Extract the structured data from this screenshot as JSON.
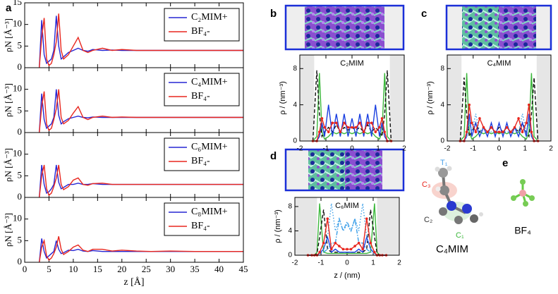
{
  "panel_labels": [
    "a",
    "b",
    "c",
    "d",
    "e"
  ],
  "panel_e": {
    "atom_labels": [
      "T₁",
      "C₃",
      "C₂",
      "C₁"
    ],
    "names": [
      "C₄MIM",
      "BF₄"
    ]
  },
  "chart_data": [
    {
      "type": "line",
      "ylabel": "ρN [Å⁻³]",
      "xlim": [
        0,
        45
      ],
      "xticks": [
        0,
        5,
        10,
        15,
        20,
        25,
        30,
        35,
        40,
        45
      ],
      "xtick_labels": false,
      "ylim": [
        0,
        15
      ],
      "yticks": [
        0,
        5,
        10,
        15
      ],
      "x": [
        3,
        3.5,
        4,
        4.5,
        5,
        5.5,
        6,
        6.5,
        7,
        7.5,
        8,
        9,
        10,
        11,
        12,
        13,
        14,
        16,
        18,
        20,
        23,
        26,
        30,
        35,
        40,
        45
      ],
      "series": [
        {
          "name": "C₂MIM+",
          "color": "#2626d4",
          "values": [
            0,
            11,
            3,
            1,
            1.5,
            2,
            4,
            12,
            5,
            2,
            2.5,
            3.5,
            4,
            4.5,
            4,
            3.8,
            4.2,
            4,
            4.1,
            4,
            4,
            4,
            4,
            4,
            4,
            4
          ]
        },
        {
          "name": "BF₄-",
          "color": "#e8261e",
          "values": [
            0,
            7,
            11.5,
            2,
            0.5,
            1,
            3,
            6,
            12.5,
            4,
            2,
            3,
            5,
            7,
            4,
            3.5,
            4,
            4.5,
            4,
            4.2,
            4,
            4,
            4,
            4,
            4,
            4
          ]
        }
      ]
    },
    {
      "type": "line",
      "ylabel": "ρN [Å⁻³]",
      "xlim": [
        0,
        45
      ],
      "xticks": [
        0,
        5,
        10,
        15,
        20,
        25,
        30,
        35,
        40,
        45
      ],
      "xtick_labels": false,
      "ylim": [
        0,
        15
      ],
      "yticks": [
        0,
        5,
        10
      ],
      "x": [
        3,
        3.5,
        4,
        4.5,
        5,
        5.5,
        6,
        6.5,
        7,
        7.5,
        8,
        9,
        10,
        11,
        12,
        13,
        14,
        16,
        18,
        20,
        23,
        26,
        30,
        35,
        40,
        45
      ],
      "series": [
        {
          "name": "C₄MIM+",
          "color": "#2626d4",
          "values": [
            0,
            9,
            3,
            1,
            1.5,
            2,
            3.5,
            10,
            4,
            2,
            2.5,
            3.2,
            3.5,
            3.8,
            3.5,
            3.4,
            3.6,
            3.5,
            3.5,
            3.5,
            3.5,
            3.5,
            3.5,
            3.5,
            3.5,
            3.5
          ]
        },
        {
          "name": "BF₄-",
          "color": "#e8261e",
          "values": [
            0,
            6,
            9.5,
            2,
            0.5,
            1,
            3,
            5.5,
            10,
            3.5,
            2,
            2.8,
            4.5,
            6,
            3.5,
            3,
            3.5,
            3.8,
            3.5,
            3.6,
            3.5,
            3.5,
            3.5,
            3.5,
            3.5,
            3.5
          ]
        }
      ]
    },
    {
      "type": "line",
      "ylabel": "ρN [Å⁻³]",
      "xlim": [
        0,
        45
      ],
      "xticks": [
        0,
        5,
        10,
        15,
        20,
        25,
        30,
        35,
        40,
        45
      ],
      "xtick_labels": false,
      "ylim": [
        0,
        15
      ],
      "yticks": [
        0,
        5,
        10
      ],
      "x": [
        3,
        3.5,
        4,
        4.5,
        5,
        5.5,
        6,
        6.5,
        7,
        7.5,
        8,
        9,
        10,
        11,
        12,
        13,
        14,
        16,
        18,
        20,
        23,
        26,
        30,
        35,
        40,
        45
      ],
      "series": [
        {
          "name": "C₆MIM+",
          "color": "#2626d4",
          "values": [
            0,
            7.5,
            3,
            1,
            1.3,
            2,
            3,
            7.5,
            3.5,
            2,
            2.3,
            3,
            3,
            3.3,
            3,
            3,
            3.2,
            3,
            3,
            3,
            3,
            3,
            3,
            3,
            3,
            3
          ]
        },
        {
          "name": "BF₄-",
          "color": "#e8261e",
          "values": [
            0,
            5,
            7.5,
            2,
            0.5,
            1,
            2.5,
            4.5,
            7.5,
            3,
            1.8,
            2.5,
            4,
            4.5,
            3,
            2.8,
            3.2,
            3.3,
            3,
            3,
            3,
            3,
            3,
            3,
            3,
            3
          ]
        }
      ]
    },
    {
      "type": "line",
      "ylabel": "ρN [Å⁻³]",
      "xlabel": "z [Å]",
      "xlim": [
        0,
        45
      ],
      "xticks": [
        0,
        5,
        10,
        15,
        20,
        25,
        30,
        35,
        40,
        45
      ],
      "xtick_labels": true,
      "ylim": [
        0,
        15
      ],
      "yticks": [
        0,
        5,
        10
      ],
      "x": [
        3,
        3.5,
        4,
        4.5,
        5,
        5.5,
        6,
        6.5,
        7,
        7.5,
        8,
        9,
        10,
        11,
        12,
        13,
        14,
        16,
        18,
        20,
        23,
        26,
        30,
        35,
        40,
        45
      ],
      "series": [
        {
          "name": "C₈MIM+",
          "color": "#2626d4",
          "values": [
            0,
            5.5,
            2.5,
            1,
            1.5,
            2,
            2.5,
            5,
            3,
            2,
            2.2,
            2.8,
            2.7,
            3,
            2.6,
            2.5,
            2.7,
            2.5,
            2.5,
            2.5,
            2.5,
            2.5,
            2.5,
            2.5,
            2.5,
            2.5
          ]
        },
        {
          "name": "BF₄-",
          "color": "#e8261e",
          "values": [
            0,
            3.5,
            5,
            1.5,
            0.5,
            1,
            2,
            3.5,
            6,
            3,
            1.8,
            2.5,
            3.5,
            4,
            2.8,
            2.5,
            3,
            3,
            2.6,
            2.8,
            2.6,
            2.5,
            2.6,
            2.5,
            2.5,
            2.5
          ]
        }
      ]
    },
    {
      "type": "line",
      "label": "C₂MIM",
      "ylabel": "ρ / (nm⁻³)",
      "xlim": [
        -2,
        2
      ],
      "xticks": [
        -2,
        -1,
        0,
        1,
        2
      ],
      "xtick_labels": true,
      "ylim": [
        0,
        9.5
      ],
      "yticks": [
        0,
        4,
        8
      ],
      "shaded": [
        [
          -2,
          -1.45
        ],
        [
          1.45,
          2
        ]
      ],
      "x": [
        -1.5,
        -1.35,
        -1.25,
        -1.15,
        -1.05,
        -0.9,
        -0.75,
        -0.6,
        -0.45,
        -0.3,
        -0.15,
        0,
        0.15,
        0.3,
        0.45,
        0.6,
        0.75,
        0.9,
        1.05,
        1.15,
        1.25,
        1.35,
        1.5
      ],
      "series": [
        {
          "color": "#3cb83c",
          "values": [
            0,
            0.5,
            7.5,
            1,
            0.2,
            0.5,
            1,
            0.8,
            1,
            0.8,
            1,
            0.8,
            1,
            0.8,
            1,
            0.8,
            1,
            0.5,
            0.2,
            1,
            7.5,
            0.5,
            0
          ]
        },
        {
          "color": "#111111",
          "dash": "dashed",
          "values": [
            0,
            7.8,
            3,
            0.5,
            1,
            1.5,
            1,
            1.8,
            1,
            1.5,
            1.2,
            1.5,
            1.2,
            1.5,
            1,
            1.8,
            1,
            1.5,
            1,
            0.5,
            3,
            7.8,
            0
          ]
        },
        {
          "color": "#1a3fe0",
          "values": [
            0,
            0,
            0.5,
            2,
            0.5,
            4,
            0.5,
            3,
            0.5,
            3,
            0.5,
            2.5,
            0.5,
            3,
            0.5,
            3,
            0.5,
            4,
            0.5,
            2,
            0.5,
            0,
            0
          ]
        },
        {
          "color": "#e8261e",
          "marker": "circle",
          "values": [
            0,
            0,
            1,
            2.5,
            1.5,
            1,
            2,
            2,
            1,
            2,
            1.5,
            1.5,
            1.5,
            2,
            1,
            2,
            2,
            1,
            1.5,
            2.5,
            1,
            0,
            0
          ]
        }
      ]
    },
    {
      "type": "line",
      "label": "C₄MIM",
      "ylabel": "ρ / (nm⁻³)",
      "xlim": [
        -2,
        2
      ],
      "xticks": [
        -2,
        -1,
        0,
        1,
        2
      ],
      "xtick_labels": true,
      "ylim": [
        0,
        9.5
      ],
      "yticks": [
        0,
        4,
        8
      ],
      "shaded": [
        [
          -2,
          -1.45
        ],
        [
          1.45,
          2
        ]
      ],
      "x": [
        -1.5,
        -1.35,
        -1.25,
        -1.15,
        -1.05,
        -0.9,
        -0.75,
        -0.6,
        -0.45,
        -0.3,
        -0.15,
        0,
        0.15,
        0.3,
        0.45,
        0.6,
        0.75,
        0.9,
        1.05,
        1.15,
        1.25,
        1.35,
        1.5
      ],
      "series": [
        {
          "color": "#3cb83c",
          "values": [
            0,
            0.5,
            7.5,
            1,
            0.2,
            0.5,
            1,
            0.8,
            1,
            0.8,
            1,
            0.8,
            1,
            0.8,
            1,
            0.8,
            1,
            0.5,
            0.2,
            1,
            7.5,
            0.5,
            0
          ]
        },
        {
          "color": "#111111",
          "dash": "dashed",
          "values": [
            0,
            7,
            3,
            0.5,
            1,
            2,
            1,
            1.5,
            1,
            1.5,
            1,
            1.5,
            1,
            1.5,
            1,
            1.5,
            1,
            2,
            1,
            0.5,
            3,
            7,
            0
          ]
        },
        {
          "color": "#1a3fe0",
          "values": [
            0,
            0,
            0.5,
            3,
            0.5,
            2,
            0.5,
            1.5,
            0.5,
            2,
            0.5,
            2,
            0.5,
            2,
            0.5,
            1.5,
            0.5,
            2,
            0.5,
            3,
            0.5,
            0,
            0
          ]
        },
        {
          "color": "#3a9ee8",
          "dash": "dotted",
          "values": [
            0,
            0,
            0.5,
            2,
            1,
            3,
            1,
            1.5,
            1,
            1,
            1,
            1,
            1,
            1,
            1,
            1.5,
            1,
            3,
            1,
            2,
            0.5,
            0,
            0
          ]
        },
        {
          "color": "#e8261e",
          "marker": "circle",
          "values": [
            0,
            0,
            1,
            4,
            2,
            1,
            2.5,
            1.5,
            1,
            1.5,
            1,
            1,
            1,
            1.5,
            1,
            1.5,
            2.5,
            1,
            2,
            4,
            1,
            0,
            0
          ]
        }
      ]
    },
    {
      "type": "line",
      "label": "C₆MIM",
      "ylabel": "ρ / (nm⁻³)",
      "xlabel": "z / (nm)",
      "xlim": [
        -2,
        2
      ],
      "xticks": [
        -2,
        -1,
        0,
        1,
        2
      ],
      "xtick_labels": true,
      "ylim": [
        0,
        9.5
      ],
      "yticks": [
        0,
        4,
        8
      ],
      "shaded": [
        [
          -2,
          -1.15
        ],
        [
          1.15,
          2
        ]
      ],
      "x": [
        -1.5,
        -1.35,
        -1.25,
        -1.15,
        -1.05,
        -0.9,
        -0.75,
        -0.6,
        -0.45,
        -0.3,
        -0.15,
        0,
        0.15,
        0.3,
        0.45,
        0.6,
        0.75,
        0.9,
        1.05,
        1.15,
        1.25,
        1.35,
        1.5
      ],
      "series": [
        {
          "color": "#3cb83c",
          "values": [
            0,
            0,
            0,
            0.5,
            8.5,
            0.5,
            0.3,
            0.3,
            0.3,
            0.3,
            0.3,
            0.3,
            0.3,
            0.3,
            0.3,
            0.3,
            0.3,
            0.5,
            8.5,
            0.5,
            0,
            0,
            0
          ]
        },
        {
          "color": "#111111",
          "dash": "dashed",
          "values": [
            0,
            0,
            0,
            0.3,
            3,
            7.5,
            1,
            0.5,
            0.5,
            0.5,
            0.5,
            0.5,
            0.5,
            0.5,
            0.5,
            0.5,
            1,
            7.5,
            3,
            0.3,
            0,
            0,
            0
          ]
        },
        {
          "color": "#1a3fe0",
          "values": [
            0,
            0,
            0,
            0,
            0.3,
            1,
            3,
            0.5,
            1,
            0.5,
            0.5,
            0.5,
            0.5,
            0.5,
            1,
            0.5,
            3,
            1,
            0.3,
            0,
            0,
            0,
            0
          ]
        },
        {
          "color": "#3a9ee8",
          "dash": "dotted",
          "values": [
            0,
            0,
            0,
            0,
            0.5,
            1,
            3,
            8.5,
            4,
            6,
            4,
            5,
            4,
            6,
            4,
            8.5,
            3,
            1,
            0.5,
            0,
            0,
            0,
            0
          ]
        },
        {
          "color": "#3a9ee8",
          "dash": "dashdot",
          "values": [
            0,
            0,
            0,
            0,
            0.3,
            0.5,
            1,
            2,
            2,
            6,
            4,
            5.5,
            4,
            6,
            2,
            2,
            1,
            0.5,
            0.3,
            0,
            0,
            0,
            0
          ]
        },
        {
          "color": "#e8261e",
          "marker": "circle",
          "values": [
            0,
            0,
            0,
            0,
            0.5,
            2,
            6,
            1,
            2,
            1.5,
            1,
            1,
            1,
            1.5,
            2,
            1,
            6,
            2,
            0.5,
            0,
            0,
            0,
            0
          ]
        }
      ]
    }
  ]
}
